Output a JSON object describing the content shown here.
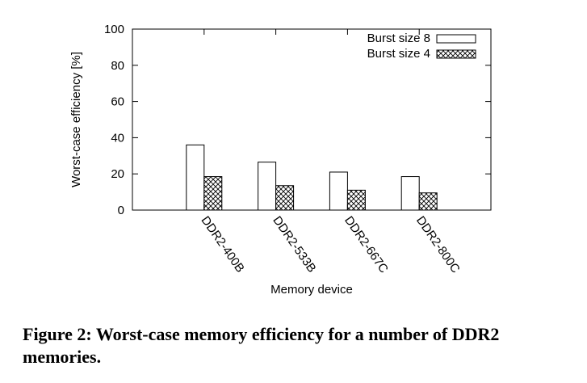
{
  "figure": {
    "caption": "Figure 2: Worst-case memory efficiency for a number of DDR2 memories."
  },
  "chart_data": {
    "type": "bar",
    "xlabel": "Memory device",
    "ylabel": "Worst-case efficiency [%]",
    "ylim": [
      0,
      100
    ],
    "yticks": [
      "0",
      "20",
      "40",
      "60",
      "80",
      "100"
    ],
    "categories": [
      "DDR2-400B",
      "DDR2-533B",
      "DDR2-667C",
      "DDR2-800C"
    ],
    "series": [
      {
        "name": "Burst size 8",
        "fill": "plain",
        "values": [
          36,
          26.5,
          21,
          18.5
        ]
      },
      {
        "name": "Burst size 4",
        "fill": "crosshatch",
        "values": [
          18.5,
          13.5,
          11,
          9.5
        ]
      }
    ],
    "legend": "top-right",
    "grid": false
  }
}
